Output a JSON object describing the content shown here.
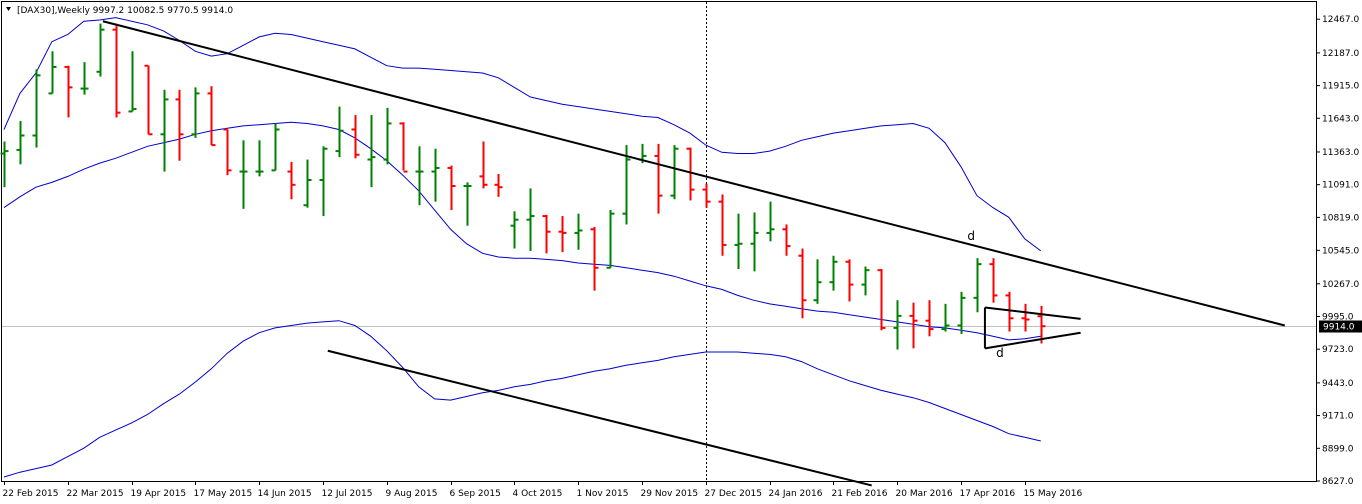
{
  "header": {
    "dropdown_icon": "triangle-down-icon",
    "info_text": "[DAX30],Weekly  9997.2 10082.5 9770.5 9914.0"
  },
  "colors": {
    "background": "#ffffff",
    "up_bar": "#008000",
    "down_bar": "#ff0000",
    "band": "#0000cd",
    "trendline": "#000000",
    "price_line": "#c0c0c0",
    "price_tag_bg": "#000000"
  },
  "chart_data": {
    "type": "ohlc",
    "timeframe": "Weekly",
    "symbol": "DAX30",
    "current_price": 9914.0,
    "current_price_label": "9914.0",
    "ylim": [
      8627,
      12610
    ],
    "y_ticks": [
      8627.0,
      8899.0,
      9171.0,
      9443.0,
      9723.0,
      9995.0,
      10267.0,
      10545.0,
      10819.0,
      11091.0,
      11363.0,
      11643.0,
      11915.0,
      12187.0,
      12467.0
    ],
    "y_tick_labels": [
      "8627.0",
      "8899.0",
      "9171.0",
      "9443.0",
      "9723.0",
      "9995.0",
      "10267.0",
      "10545.0",
      "10819.0",
      "11091.0",
      "11363.0",
      "11643.0",
      "11915.0",
      "12187.0",
      "12467.0"
    ],
    "x_tick_labels": [
      "22 Feb 2015",
      "22 Mar 2015",
      "19 Apr 2015",
      "17 May 2015",
      "14 Jun 2015",
      "12 Jul 2015",
      "9 Aug 2015",
      "6 Sep 2015",
      "4 Oct 2015",
      "1 Nov 2015",
      "29 Nov 2015",
      "27 Dec 2015",
      "24 Jan 2016",
      "21 Feb 2016",
      "20 Mar 2016",
      "17 Apr 2016",
      "15 May 2016"
    ],
    "x_tick_bars": [
      0,
      4,
      8,
      12,
      16,
      20,
      24,
      28,
      32,
      36,
      40,
      44,
      48,
      52,
      56,
      60,
      64
    ],
    "separator_bar": 44,
    "bars": [
      {
        "o": 11350,
        "h": 11450,
        "l": 11070,
        "c": 11370
      },
      {
        "o": 11380,
        "h": 11620,
        "l": 11260,
        "c": 11500
      },
      {
        "o": 11500,
        "h": 12050,
        "l": 11400,
        "c": 12000
      },
      {
        "o": 11850,
        "h": 12200,
        "l": 11850,
        "c": 12070
      },
      {
        "o": 12070,
        "h": 12080,
        "l": 11650,
        "c": 11900
      },
      {
        "o": 11890,
        "h": 12110,
        "l": 11840,
        "c": 11890
      },
      {
        "o": 12030,
        "h": 12430,
        "l": 11990,
        "c": 12380
      },
      {
        "o": 12380,
        "h": 12430,
        "l": 11650,
        "c": 11690
      },
      {
        "o": 11700,
        "h": 12200,
        "l": 11700,
        "c": 11720
      },
      {
        "o": 12080,
        "h": 12080,
        "l": 11510,
        "c": 11510
      },
      {
        "o": 11510,
        "h": 11880,
        "l": 11200,
        "c": 11800
      },
      {
        "o": 11800,
        "h": 11880,
        "l": 11290,
        "c": 11510
      },
      {
        "o": 11510,
        "h": 11900,
        "l": 11480,
        "c": 11850
      },
      {
        "o": 11850,
        "h": 11910,
        "l": 11420,
        "c": 11420
      },
      {
        "o": 11550,
        "h": 11550,
        "l": 11170,
        "c": 11210
      },
      {
        "o": 11200,
        "h": 11460,
        "l": 10890,
        "c": 11200
      },
      {
        "o": 11200,
        "h": 11460,
        "l": 11160,
        "c": 11200
      },
      {
        "o": 11210,
        "h": 11600,
        "l": 11210,
        "c": 11550
      },
      {
        "o": 11200,
        "h": 11280,
        "l": 10970,
        "c": 11090
      },
      {
        "o": 10920,
        "h": 11300,
        "l": 10900,
        "c": 11130
      },
      {
        "o": 11130,
        "h": 11410,
        "l": 10830,
        "c": 11390
      },
      {
        "o": 11370,
        "h": 11740,
        "l": 11320,
        "c": 11540
      },
      {
        "o": 11550,
        "h": 11670,
        "l": 11310,
        "c": 11340
      },
      {
        "o": 11300,
        "h": 11670,
        "l": 11070,
        "c": 11320
      },
      {
        "o": 11300,
        "h": 11730,
        "l": 11260,
        "c": 11600
      },
      {
        "o": 11600,
        "h": 11610,
        "l": 11210,
        "c": 11200
      },
      {
        "o": 11200,
        "h": 11410,
        "l": 10920,
        "c": 11200
      },
      {
        "o": 11200,
        "h": 11390,
        "l": 10950,
        "c": 11230
      },
      {
        "o": 11230,
        "h": 11250,
        "l": 10880,
        "c": 11080
      },
      {
        "o": 11080,
        "h": 11110,
        "l": 10750,
        "c": 11080
      },
      {
        "o": 11160,
        "h": 11450,
        "l": 11060,
        "c": 11090
      },
      {
        "o": 11090,
        "h": 11180,
        "l": 10990,
        "c": 11070
      },
      {
        "o": 10750,
        "h": 10870,
        "l": 10560,
        "c": 10800
      },
      {
        "o": 10800,
        "h": 11060,
        "l": 10540,
        "c": 10830
      },
      {
        "o": 10830,
        "h": 10840,
        "l": 10520,
        "c": 10700
      },
      {
        "o": 10700,
        "h": 10830,
        "l": 10530,
        "c": 10690
      },
      {
        "o": 10690,
        "h": 10850,
        "l": 10550,
        "c": 10710
      },
      {
        "o": 10720,
        "h": 10740,
        "l": 10210,
        "c": 10400
      },
      {
        "o": 10400,
        "h": 10880,
        "l": 10400,
        "c": 10850
      },
      {
        "o": 10850,
        "h": 11420,
        "l": 10760,
        "c": 11300
      },
      {
        "o": 11300,
        "h": 11430,
        "l": 11270,
        "c": 11330
      },
      {
        "o": 11330,
        "h": 11430,
        "l": 10850,
        "c": 11000
      },
      {
        "o": 11000,
        "h": 11420,
        "l": 10970,
        "c": 11390
      },
      {
        "o": 11390,
        "h": 11400,
        "l": 10960,
        "c": 11050
      },
      {
        "o": 11050,
        "h": 11100,
        "l": 10900,
        "c": 10950
      },
      {
        "o": 10950,
        "h": 11010,
        "l": 10500,
        "c": 10590
      },
      {
        "o": 10590,
        "h": 10850,
        "l": 10390,
        "c": 10600
      },
      {
        "o": 10600,
        "h": 10860,
        "l": 10370,
        "c": 10690
      },
      {
        "o": 10690,
        "h": 10950,
        "l": 10620,
        "c": 10720
      },
      {
        "o": 10720,
        "h": 10760,
        "l": 10500,
        "c": 10580
      },
      {
        "o": 10500,
        "h": 10560,
        "l": 9980,
        "c": 10130
      },
      {
        "o": 10130,
        "h": 10470,
        "l": 10100,
        "c": 10280
      },
      {
        "o": 10280,
        "h": 10500,
        "l": 10210,
        "c": 10450
      },
      {
        "o": 10450,
        "h": 10470,
        "l": 10120,
        "c": 10260
      },
      {
        "o": 10260,
        "h": 10410,
        "l": 10170,
        "c": 10380
      },
      {
        "o": 10380,
        "h": 10390,
        "l": 9880,
        "c": 9900
      },
      {
        "o": 9900,
        "h": 10130,
        "l": 9720,
        "c": 10000
      },
      {
        "o": 10000,
        "h": 10110,
        "l": 9730,
        "c": 9960
      },
      {
        "o": 9960,
        "h": 10130,
        "l": 9830,
        "c": 9890
      },
      {
        "o": 9890,
        "h": 10100,
        "l": 9870,
        "c": 9920
      },
      {
        "o": 9920,
        "h": 10200,
        "l": 9850,
        "c": 10150
      },
      {
        "o": 10150,
        "h": 10480,
        "l": 10030,
        "c": 10430
      },
      {
        "o": 10430,
        "h": 10480,
        "l": 10110,
        "c": 10170
      },
      {
        "o": 10170,
        "h": 10200,
        "l": 9870,
        "c": 9980
      },
      {
        "o": 9980,
        "h": 10100,
        "l": 9870,
        "c": 9970
      },
      {
        "o": 9997.2,
        "h": 10082.5,
        "l": 9770.5,
        "c": 9914.0
      }
    ],
    "bollinger_upper": [
      11550,
      11850,
      12020,
      12280,
      12340,
      12450,
      12460,
      12480,
      12450,
      12420,
      12370,
      12290,
      12200,
      12160,
      12180,
      12250,
      12320,
      12350,
      12340,
      12310,
      12280,
      12250,
      12220,
      12150,
      12080,
      12060,
      12060,
      12050,
      12040,
      12030,
      12020,
      11980,
      11900,
      11820,
      11790,
      11760,
      11740,
      11720,
      11700,
      11680,
      11660,
      11650,
      11590,
      11520,
      11420,
      11360,
      11350,
      11350,
      11370,
      11410,
      11460,
      11490,
      11520,
      11540,
      11560,
      11580,
      11590,
      11600,
      11560,
      11440,
      11240,
      11000,
      10900,
      10820,
      10640,
      10540
    ],
    "bollinger_middle": [
      10900,
      10990,
      11070,
      11110,
      11160,
      11220,
      11270,
      11310,
      11360,
      11410,
      11440,
      11470,
      11510,
      11540,
      11560,
      11580,
      11590,
      11600,
      11610,
      11600,
      11580,
      11550,
      11480,
      11390,
      11290,
      11170,
      11040,
      10880,
      10720,
      10600,
      10520,
      10490,
      10480,
      10480,
      10470,
      10460,
      10440,
      10430,
      10420,
      10400,
      10380,
      10360,
      10330,
      10290,
      10250,
      10220,
      10170,
      10130,
      10100,
      10080,
      10060,
      10040,
      10030,
      10010,
      9990,
      9970,
      9950,
      9930,
      9910,
      9900,
      9880,
      9860,
      9830,
      9800,
      9810,
      9830
    ],
    "bollinger_lower": [
      8660,
      8700,
      8730,
      8760,
      8830,
      8900,
      8990,
      9050,
      9110,
      9180,
      9270,
      9350,
      9450,
      9560,
      9690,
      9790,
      9860,
      9900,
      9920,
      9940,
      9950,
      9960,
      9920,
      9830,
      9710,
      9570,
      9410,
      9310,
      9300,
      9330,
      9360,
      9380,
      9410,
      9430,
      9460,
      9480,
      9510,
      9540,
      9560,
      9590,
      9610,
      9630,
      9660,
      9680,
      9700,
      9700,
      9700,
      9690,
      9680,
      9660,
      9620,
      9560,
      9510,
      9460,
      9420,
      9380,
      9350,
      9320,
      9280,
      9230,
      9180,
      9130,
      9080,
      9020,
      8990,
      8960
    ],
    "trendlines": [
      {
        "name": "upper-channel",
        "x1": 6.2,
        "y1": 12450,
        "x2": 80.3,
        "y2": 9920
      },
      {
        "name": "lower-channel",
        "x1": 20.3,
        "y1": 9710,
        "x2": 54.4,
        "y2": 8590
      },
      {
        "name": "triangle-top",
        "x1": 61.5,
        "y1": 10070,
        "x2": 67.5,
        "y2": 9975
      },
      {
        "name": "triangle-bottom",
        "x1": 61.5,
        "y1": 9730,
        "x2": 67.5,
        "y2": 9860
      },
      {
        "name": "triangle-side",
        "x1": 61.5,
        "y1": 10070,
        "x2": 61.5,
        "y2": 9730
      }
    ],
    "annotations": [
      {
        "text": "d",
        "x": 60.4,
        "y": 10630
      },
      {
        "text": "d",
        "x": 62.2,
        "y": 9660
      }
    ]
  }
}
